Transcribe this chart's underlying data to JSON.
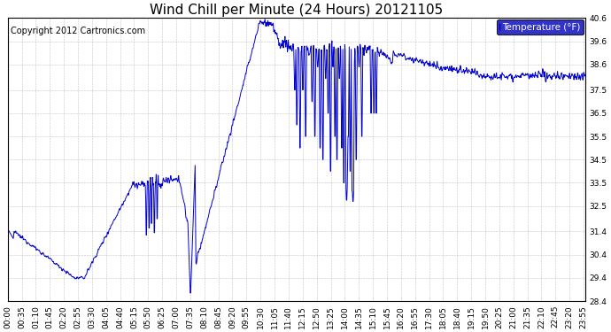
{
  "title": "Wind Chill per Minute (24 Hours) 20121105",
  "copyright": "Copyright 2012 Cartronics.com",
  "legend_label": "Temperature (°F)",
  "legend_bg": "#0000bb",
  "legend_text_color": "#ffffff",
  "line_color": "#0000cc",
  "bg_color": "#ffffff",
  "plot_bg": "#ffffff",
  "grid_color": "#aaaaaa",
  "ylim": [
    28.4,
    40.6
  ],
  "yticks": [
    28.4,
    29.4,
    30.4,
    31.4,
    32.5,
    33.5,
    34.5,
    35.5,
    36.5,
    37.5,
    38.6,
    39.6,
    40.6
  ],
  "title_fontsize": 11,
  "copyright_fontsize": 7,
  "axis_fontsize": 6.5,
  "legend_fontsize": 7.5
}
